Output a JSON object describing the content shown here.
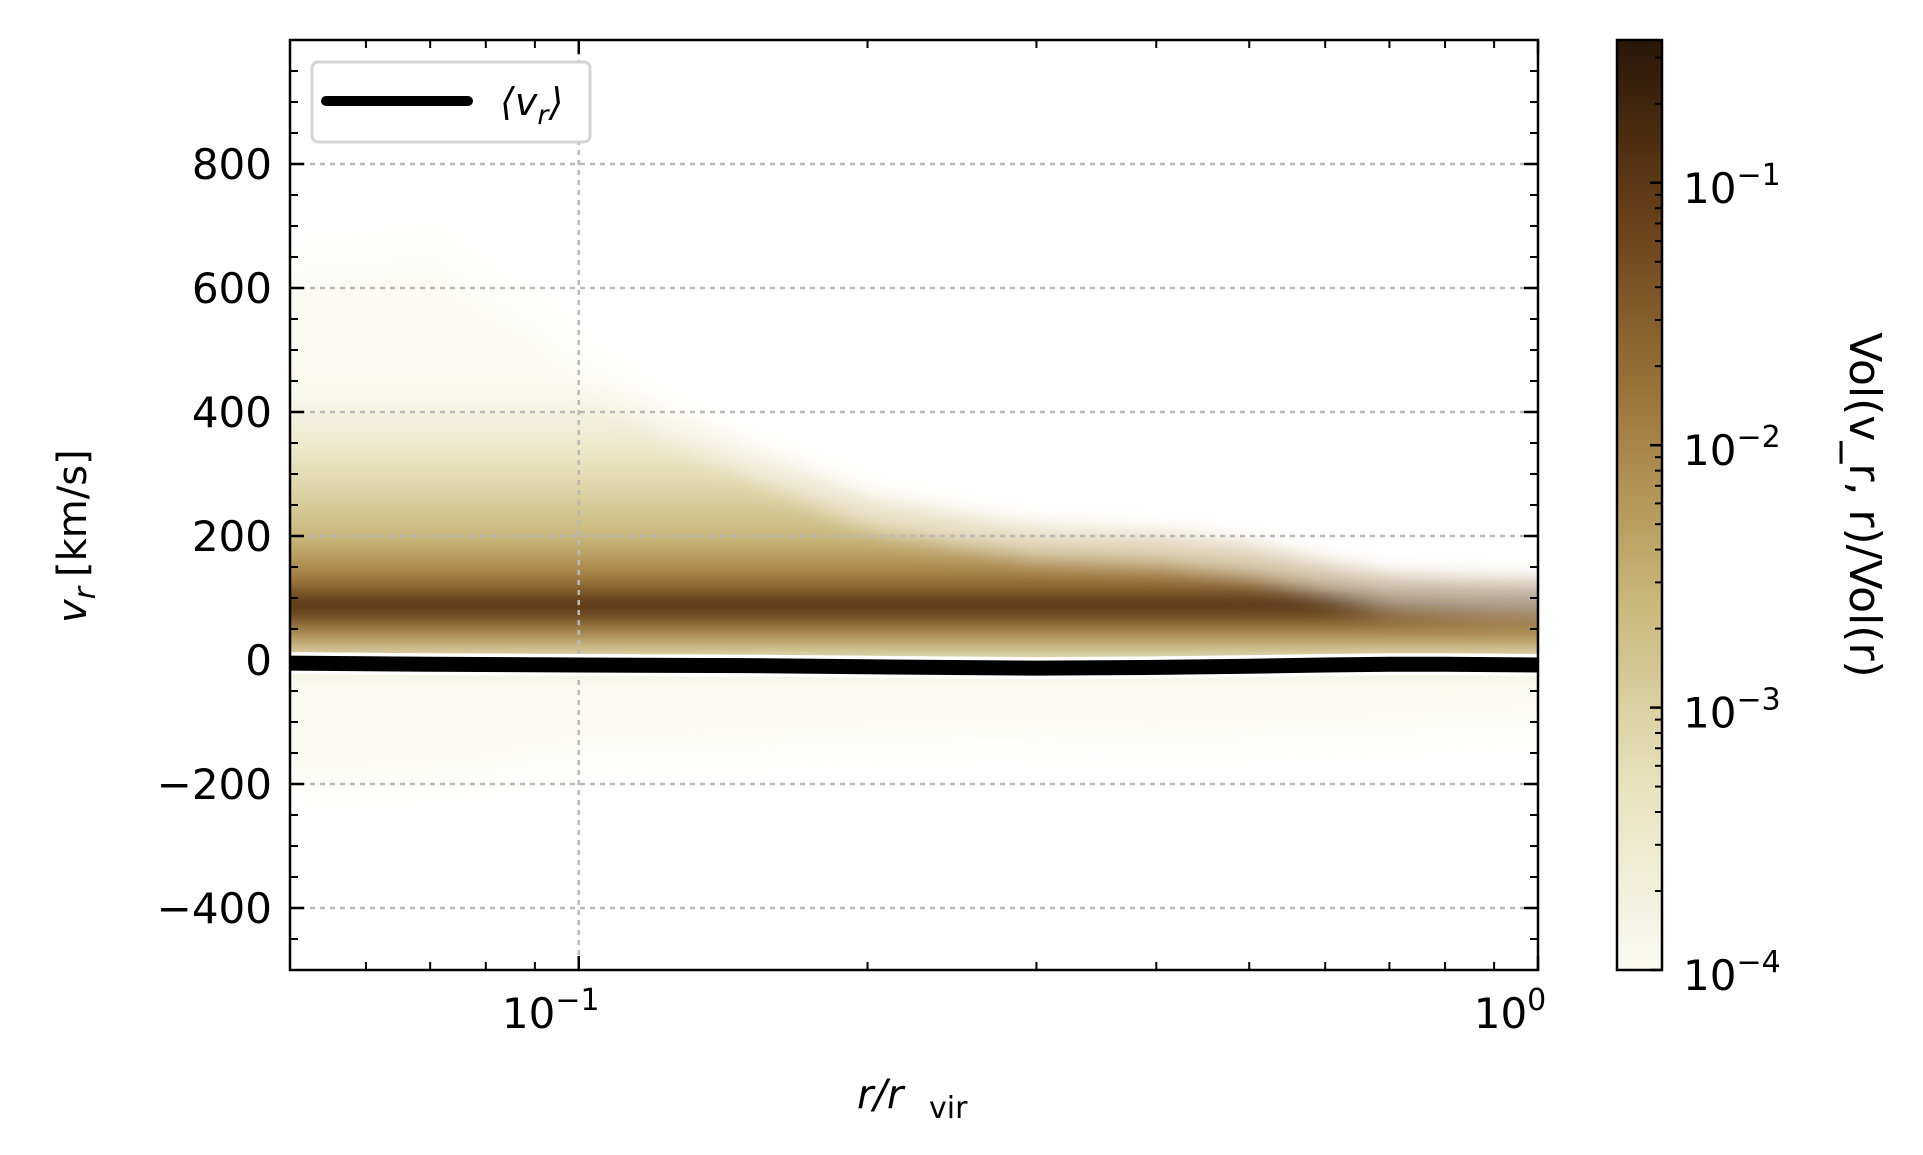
{
  "chart_data": {
    "type": "heatmap",
    "xscale": "log",
    "xlim": [
      0.05,
      1.0
    ],
    "ylim": [
      -500,
      1000
    ],
    "xlabel": {
      "main": "r/r",
      "sub": "vir"
    },
    "ylabel": {
      "main": "v",
      "sub": "r",
      "units": "[km/s]"
    },
    "x_major_ticks": [
      {
        "value": 0.1,
        "base": "10",
        "exp": "−1"
      },
      {
        "value": 1.0,
        "base": "10",
        "exp": "0"
      }
    ],
    "y_ticks": [
      {
        "value": -400,
        "label": "−400"
      },
      {
        "value": -200,
        "label": "−200"
      },
      {
        "value": 0,
        "label": "0"
      },
      {
        "value": 200,
        "label": "200"
      },
      {
        "value": 400,
        "label": "400"
      },
      {
        "value": 600,
        "label": "600"
      },
      {
        "value": 800,
        "label": "800"
      }
    ],
    "grid": true,
    "legend": {
      "position": "top-left",
      "entries": [
        {
          "base": "⟨v",
          "sub": "r",
          "close": "⟩"
        }
      ]
    },
    "colorbar": {
      "label": "Vol(v_r, r)/Vol(r)",
      "scale": "log",
      "range": [
        0.0001,
        0.35
      ],
      "colors": [
        "#fafaf2",
        "#e7e2bd",
        "#c9b679",
        "#a07a3e",
        "#6b421a",
        "#2a1608"
      ],
      "ticks": [
        {
          "value": 0.0001,
          "base": "10",
          "exp": "−4"
        },
        {
          "value": 0.001,
          "base": "10",
          "exp": "−3"
        },
        {
          "value": 0.01,
          "base": "10",
          "exp": "−2"
        },
        {
          "value": 0.1,
          "base": "10",
          "exp": "−1"
        }
      ]
    },
    "distribution_envelope": {
      "r": [
        0.05,
        0.06,
        0.07,
        0.08,
        0.09,
        0.1,
        0.12,
        0.15,
        0.2,
        0.25,
        0.3,
        0.4,
        0.5,
        0.6,
        0.7,
        0.8,
        0.9,
        1.0
      ],
      "v_upper": [
        600,
        610,
        630,
        560,
        520,
        450,
        360,
        290,
        210,
        180,
        160,
        150,
        130,
        100,
        80,
        75,
        72,
        70
      ],
      "v_lower": [
        -185,
        -180,
        -175,
        -165,
        -145,
        -135,
        -130,
        -125,
        -115,
        -110,
        -110,
        -115,
        -110,
        -105,
        -100,
        -95,
        -90,
        -85
      ]
    },
    "series": [
      {
        "name": "⟨v_r⟩",
        "x": [
          0.05,
          0.07,
          0.1,
          0.15,
          0.2,
          0.3,
          0.4,
          0.5,
          0.6,
          0.7,
          0.8,
          1.0
        ],
        "y": [
          -5,
          -7,
          -8,
          -9,
          -11,
          -13,
          -12,
          -10,
          -8,
          -7,
          -7,
          -8
        ]
      }
    ]
  }
}
